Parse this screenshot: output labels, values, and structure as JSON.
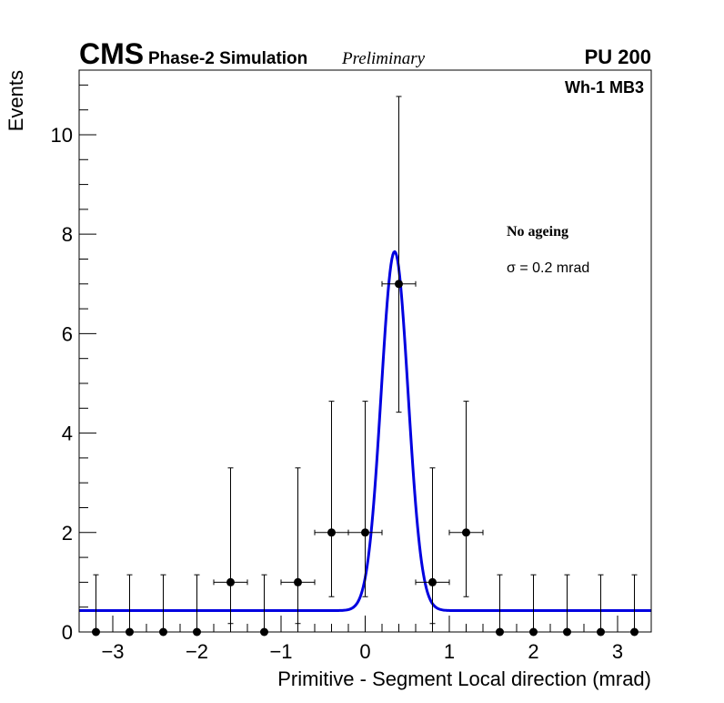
{
  "chart_data": {
    "type": "scatter",
    "experiment": "CMS",
    "subtitle": "Phase-2 Simulation",
    "status": "Preliminary",
    "pileup": "PU 200",
    "station": "Wh-1 MB3",
    "xlabel": "Primitive - Segment Local direction (mrad)",
    "ylabel": "Events",
    "xlim": [
      -3.4,
      3.4
    ],
    "ylim": [
      0,
      11.3
    ],
    "x_ticks": [
      -3,
      -2,
      -1,
      0,
      1,
      2,
      3
    ],
    "x_tick_labels": [
      "−3",
      "−2",
      "−1",
      "0",
      "1",
      "2",
      "3"
    ],
    "y_ticks": [
      0,
      2,
      4,
      6,
      8,
      10
    ],
    "y_tick_labels": [
      "0",
      "2",
      "4",
      "6",
      "8",
      "10"
    ],
    "bin_half_width": 0.2,
    "series": [
      {
        "name": "data",
        "x": [
          -3.2,
          -2.8,
          -2.4,
          -2.0,
          -1.6,
          -1.2,
          -0.8,
          -0.4,
          0.0,
          0.4,
          0.8,
          1.2,
          1.6,
          2.0,
          2.4,
          2.8,
          3.2
        ],
        "y": [
          0,
          0,
          0,
          0,
          1,
          0,
          1,
          2,
          2,
          7,
          1,
          2,
          0,
          0,
          0,
          0,
          0
        ],
        "err_low": [
          0,
          0,
          0,
          0,
          0.83,
          0,
          0.83,
          1.29,
          1.29,
          2.58,
          0.83,
          1.29,
          0,
          0,
          0,
          0,
          0
        ],
        "err_high": [
          1.15,
          1.15,
          1.15,
          1.15,
          2.3,
          1.15,
          2.3,
          2.64,
          2.64,
          3.77,
          2.3,
          2.64,
          1.15,
          1.15,
          1.15,
          1.15,
          1.15
        ]
      }
    ],
    "fit": {
      "name": "gaussian fit",
      "color": "#0000e0",
      "mean": 0.35,
      "sigma": 0.16,
      "amplitude": 7.22,
      "constant": 0.43
    },
    "annotations": {
      "ageing": "No ageing",
      "sigma_text": "σ = 0.2 mrad"
    }
  }
}
